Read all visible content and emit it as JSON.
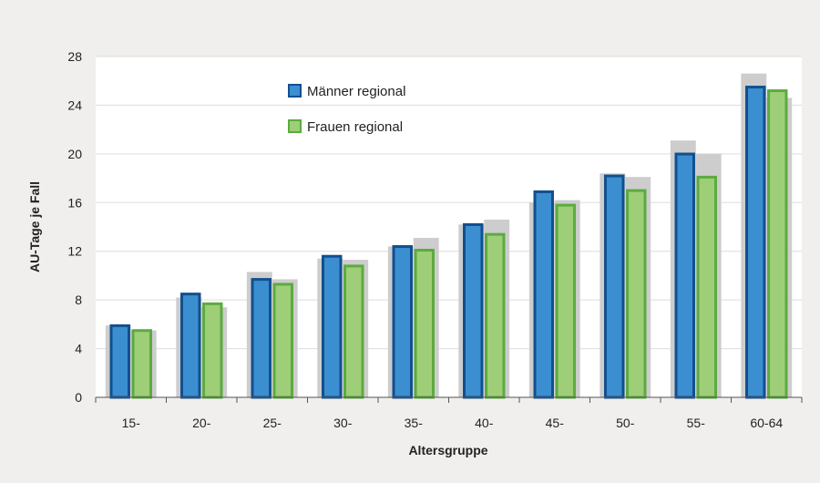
{
  "chart_data": {
    "type": "bar",
    "xlabel": "Altersgruppe",
    "ylabel": "AU-Tage je Fall",
    "ylim": [
      0,
      28
    ],
    "yticks": [
      0,
      4,
      8,
      12,
      16,
      20,
      24,
      28
    ],
    "grid": true,
    "legend_position": "top-left",
    "categories": [
      "15-",
      "20-",
      "25-",
      "30-",
      "35-",
      "40-",
      "45-",
      "50-",
      "55-",
      "60-64"
    ],
    "series": [
      {
        "name": "Männer regional",
        "values": [
          6.0,
          8.6,
          9.8,
          11.7,
          12.5,
          14.3,
          17.0,
          18.3,
          20.1,
          25.6
        ],
        "fill": "#3b8fd0",
        "stroke": "#124f8f"
      },
      {
        "name": "Frauen regional",
        "values": [
          5.6,
          7.8,
          9.4,
          10.9,
          12.2,
          13.5,
          15.9,
          17.1,
          18.2,
          25.3
        ],
        "fill": "#9fce78",
        "stroke": "#5cab3f"
      }
    ],
    "background_series": [
      {
        "values": [
          5.9,
          8.2,
          10.3,
          11.4,
          12.4,
          14.2,
          16.0,
          18.4,
          21.1,
          26.6
        ]
      },
      {
        "values": [
          5.5,
          7.4,
          9.7,
          11.3,
          13.1,
          14.6,
          16.2,
          18.1,
          20.0,
          24.6
        ]
      }
    ],
    "colors": {
      "background": "#f0efed",
      "plot_background": "#ffffff",
      "gridline": "#dddddd",
      "background_bar": "#cdcdcd",
      "axis": "#555555"
    }
  }
}
